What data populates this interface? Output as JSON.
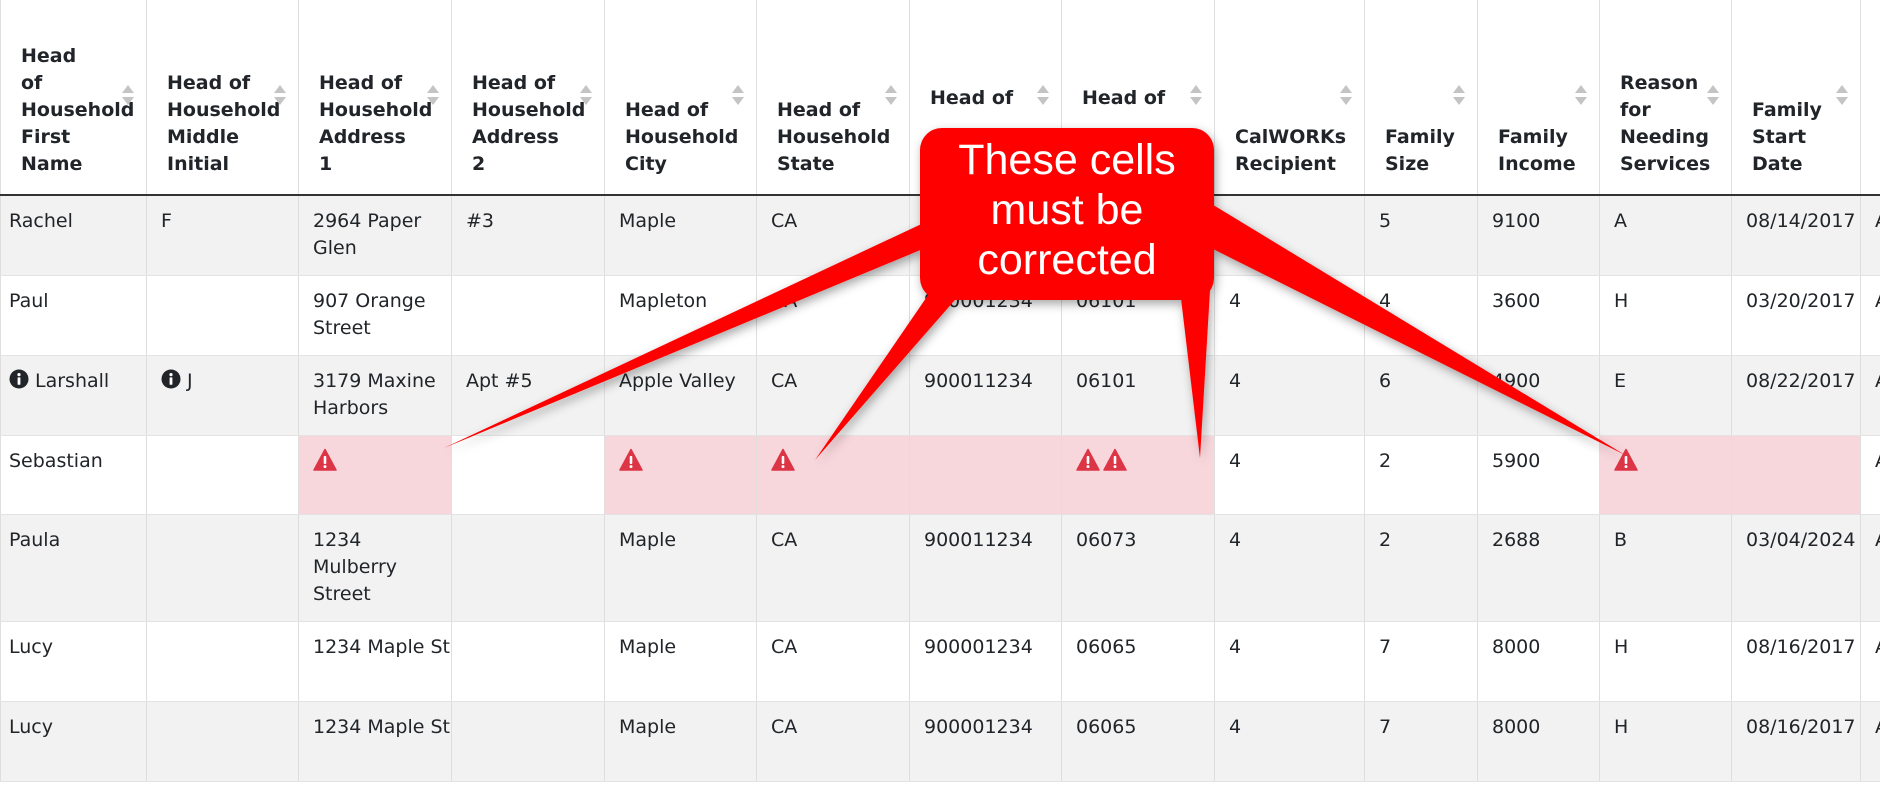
{
  "columns": [
    {
      "label": "Head of Household First Name"
    },
    {
      "label": "Head of Household Middle Initial"
    },
    {
      "label": "Head of Household Address 1"
    },
    {
      "label": "Head of Household Address 2"
    },
    {
      "label": "Head of Household City"
    },
    {
      "label": "Head of Household State"
    },
    {
      "label": "Head of"
    },
    {
      "label": "Head of"
    },
    {
      "label": "CalWORKs Recipient"
    },
    {
      "label": "Family Size"
    },
    {
      "label": "Family Income"
    },
    {
      "label": "Reason for Needing Services"
    },
    {
      "label": "Family Start Date"
    },
    {
      "label": ""
    }
  ],
  "rows": [
    {
      "cells": [
        "Rachel",
        "F",
        "2964 Paper Glen",
        "#3",
        "Maple",
        "CA",
        "",
        "",
        "",
        "5",
        "9100",
        "A",
        "08/14/2017",
        "A"
      ]
    },
    {
      "cells": [
        "Paul",
        "",
        "907 Orange Street",
        "",
        "Mapleton",
        "CA",
        "900001234",
        "06101",
        "4",
        "4",
        "3600",
        "H",
        "03/20/2017",
        "A"
      ]
    },
    {
      "cells": [
        "Larshall",
        "J",
        "3179 Maxine Harbors",
        "Apt #5",
        "Apple Valley",
        "CA",
        "900011234",
        "06101",
        "4",
        "6",
        "4900",
        "E",
        "08/22/2017",
        "A"
      ]
    },
    {
      "cells": [
        "Sebastian",
        "",
        "",
        "",
        "",
        "",
        "",
        "",
        "4",
        "2",
        "5900",
        "",
        "",
        "A"
      ]
    },
    {
      "cells": [
        "Paula",
        "",
        "1234 Mulberry Street",
        "",
        "Maple",
        "CA",
        "900011234",
        "06073",
        "4",
        "2",
        "2688",
        "B",
        "03/04/2024",
        "A"
      ]
    },
    {
      "cells": [
        "Lucy",
        "",
        "1234 Maple St",
        "",
        "Maple",
        "CA",
        "900001234",
        "06065",
        "4",
        "7",
        "8000",
        "H",
        "08/16/2017",
        "A"
      ]
    },
    {
      "cells": [
        "Lucy",
        "",
        "1234 Maple St",
        "",
        "Maple",
        "CA",
        "900001234",
        "06065",
        "4",
        "7",
        "8000",
        "H",
        "08/16/2017",
        "A"
      ]
    }
  ],
  "callout": {
    "text": "These cells must be corrected",
    "color": "#ff0000"
  },
  "colors": {
    "error_cell": "#f8d7dc",
    "warning_icon": "#dc3545",
    "info_icon": "#212529"
  },
  "icons": {
    "warning": "exclamation-triangle-icon",
    "info": "info-circle-icon",
    "sort": "sort-arrows-icon"
  }
}
